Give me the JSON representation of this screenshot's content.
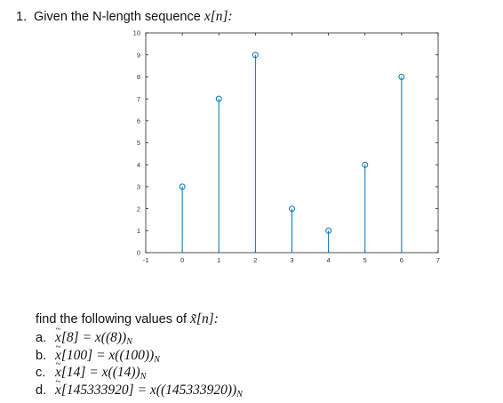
{
  "heading": {
    "number": "1.",
    "text": "Given the N-length sequence ",
    "sequence": "x[n]:"
  },
  "chart_data": {
    "type": "stem",
    "x": [
      0,
      1,
      2,
      3,
      4,
      5,
      6
    ],
    "values": [
      3,
      7,
      9,
      2,
      1,
      4,
      8
    ],
    "xlim": [
      -1,
      7
    ],
    "ylim": [
      0,
      10
    ],
    "xticks": [
      "-1",
      "0",
      "1",
      "2",
      "3",
      "4",
      "5",
      "6",
      "7"
    ],
    "yticks": [
      "0",
      "1",
      "2",
      "3",
      "4",
      "5",
      "6",
      "7",
      "8",
      "9",
      "10"
    ],
    "grid": false,
    "marker": "circle",
    "color": "#0072BD"
  },
  "prompt": {
    "text": "find the following values of ",
    "symbol": "x̃[n]:"
  },
  "items": [
    {
      "letter": "a.",
      "lhs": "[8]",
      "rhs": " = x((8))",
      "sub": "N"
    },
    {
      "letter": "b.",
      "lhs": "[100]",
      "rhs": " = x((100))",
      "sub": "N"
    },
    {
      "letter": "c.",
      "lhs": "[14]",
      "rhs": " = x((14))",
      "sub": "N"
    },
    {
      "letter": "d.",
      "lhs": "[145333920]",
      "rhs": " = x((145333920))",
      "sub": "N"
    }
  ]
}
